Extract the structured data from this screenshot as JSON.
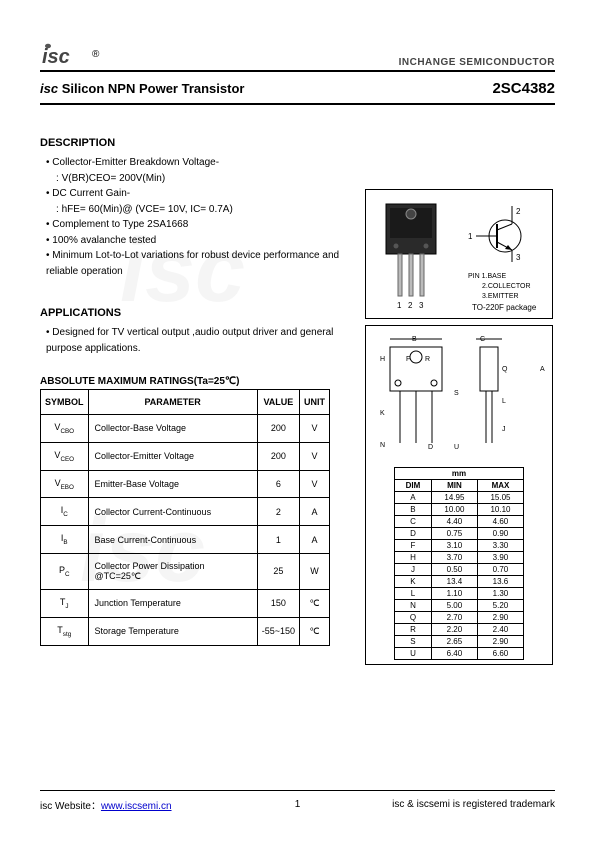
{
  "header": {
    "logo_text": "isc",
    "logo_sup": "®",
    "right_text": "INCHANGE SEMICONDUCTOR"
  },
  "title": {
    "left_prefix": "isc",
    "left_rest": " Silicon NPN Power Transistor",
    "part_number": "2SC4382"
  },
  "description": {
    "heading": "DESCRIPTION",
    "items": [
      "Collector-Emitter Breakdown Voltage-",
      "V(BR)CEO= 200V(Min)",
      "DC Current Gain-",
      "hFE= 60(Min)@ (VCE= 10V, IC= 0.7A)",
      "Complement to Type 2SA1668",
      "100% avalanche tested",
      "Minimum Lot-to-Lot variations for robust device performance and reliable operation"
    ]
  },
  "applications": {
    "heading": "APPLICATIONS",
    "text": "Designed for TV vertical output ,audio output driver and general purpose applications."
  },
  "package_diagram": {
    "pin_labels": [
      "1",
      "2",
      "3"
    ],
    "pin_names": [
      "PIN 1.BASE",
      "2.COLLECTOR",
      "3.EMITTER"
    ],
    "package_name": "TO-220F package",
    "schematic_pins": {
      "1": "1",
      "2": "2",
      "3": "3"
    }
  },
  "ratings": {
    "heading": "ABSOLUTE MAXIMUM RATINGS(Ta=25℃)",
    "columns": [
      "SYMBOL",
      "PARAMETER",
      "VALUE",
      "UNIT"
    ],
    "rows": [
      {
        "symbol": "V",
        "sub": "CBO",
        "param": "Collector-Base Voltage",
        "value": "200",
        "unit": "V"
      },
      {
        "symbol": "V",
        "sub": "CEO",
        "param": "Collector-Emitter Voltage",
        "value": "200",
        "unit": "V"
      },
      {
        "symbol": "V",
        "sub": "EBO",
        "param": "Emitter-Base Voltage",
        "value": "6",
        "unit": "V"
      },
      {
        "symbol": "I",
        "sub": "C",
        "param": "Collector Current-Continuous",
        "value": "2",
        "unit": "A"
      },
      {
        "symbol": "I",
        "sub": "B",
        "param": "Base Current-Continuous",
        "value": "1",
        "unit": "A"
      },
      {
        "symbol": "P",
        "sub": "C",
        "param": "Collector Power Dissipation @TC=25℃",
        "value": "25",
        "unit": "W"
      },
      {
        "symbol": "T",
        "sub": "J",
        "param": "Junction Temperature",
        "value": "150",
        "unit": "℃"
      },
      {
        "symbol": "T",
        "sub": "stg",
        "param": "Storage Temperature",
        "value": "-55~150",
        "unit": "℃"
      }
    ]
  },
  "dimensions": {
    "header_unit": "mm",
    "columns": [
      "DIM",
      "MIN",
      "MAX"
    ],
    "labels": [
      "B",
      "C",
      "D",
      "F",
      "R",
      "H",
      "K",
      "N",
      "A",
      "L",
      "Q",
      "J",
      "S",
      "U"
    ],
    "rows": [
      {
        "dim": "A",
        "min": "14.95",
        "max": "15.05"
      },
      {
        "dim": "B",
        "min": "10.00",
        "max": "10.10"
      },
      {
        "dim": "C",
        "min": "4.40",
        "max": "4.60"
      },
      {
        "dim": "D",
        "min": "0.75",
        "max": "0.90"
      },
      {
        "dim": "F",
        "min": "3.10",
        "max": "3.30"
      },
      {
        "dim": "H",
        "min": "3.70",
        "max": "3.90"
      },
      {
        "dim": "J",
        "min": "0.50",
        "max": "0.70"
      },
      {
        "dim": "K",
        "min": "13.4",
        "max": "13.6"
      },
      {
        "dim": "L",
        "min": "1.10",
        "max": "1.30"
      },
      {
        "dim": "N",
        "min": "5.00",
        "max": "5.20"
      },
      {
        "dim": "Q",
        "min": "2.70",
        "max": "2.90"
      },
      {
        "dim": "R",
        "min": "2.20",
        "max": "2.40"
      },
      {
        "dim": "S",
        "min": "2.65",
        "max": "2.90"
      },
      {
        "dim": "U",
        "min": "6.40",
        "max": "6.60"
      }
    ]
  },
  "footer": {
    "left_label": "isc Website：",
    "link_text": "www.iscsemi.cn",
    "page_number": "1",
    "right_text": "isc & iscsemi is registered trademark"
  },
  "colors": {
    "text": "#000000",
    "border": "#000000",
    "link": "#0000cc",
    "header_grey": "#444444",
    "watermark": "rgba(0,0,0,0.04)"
  }
}
